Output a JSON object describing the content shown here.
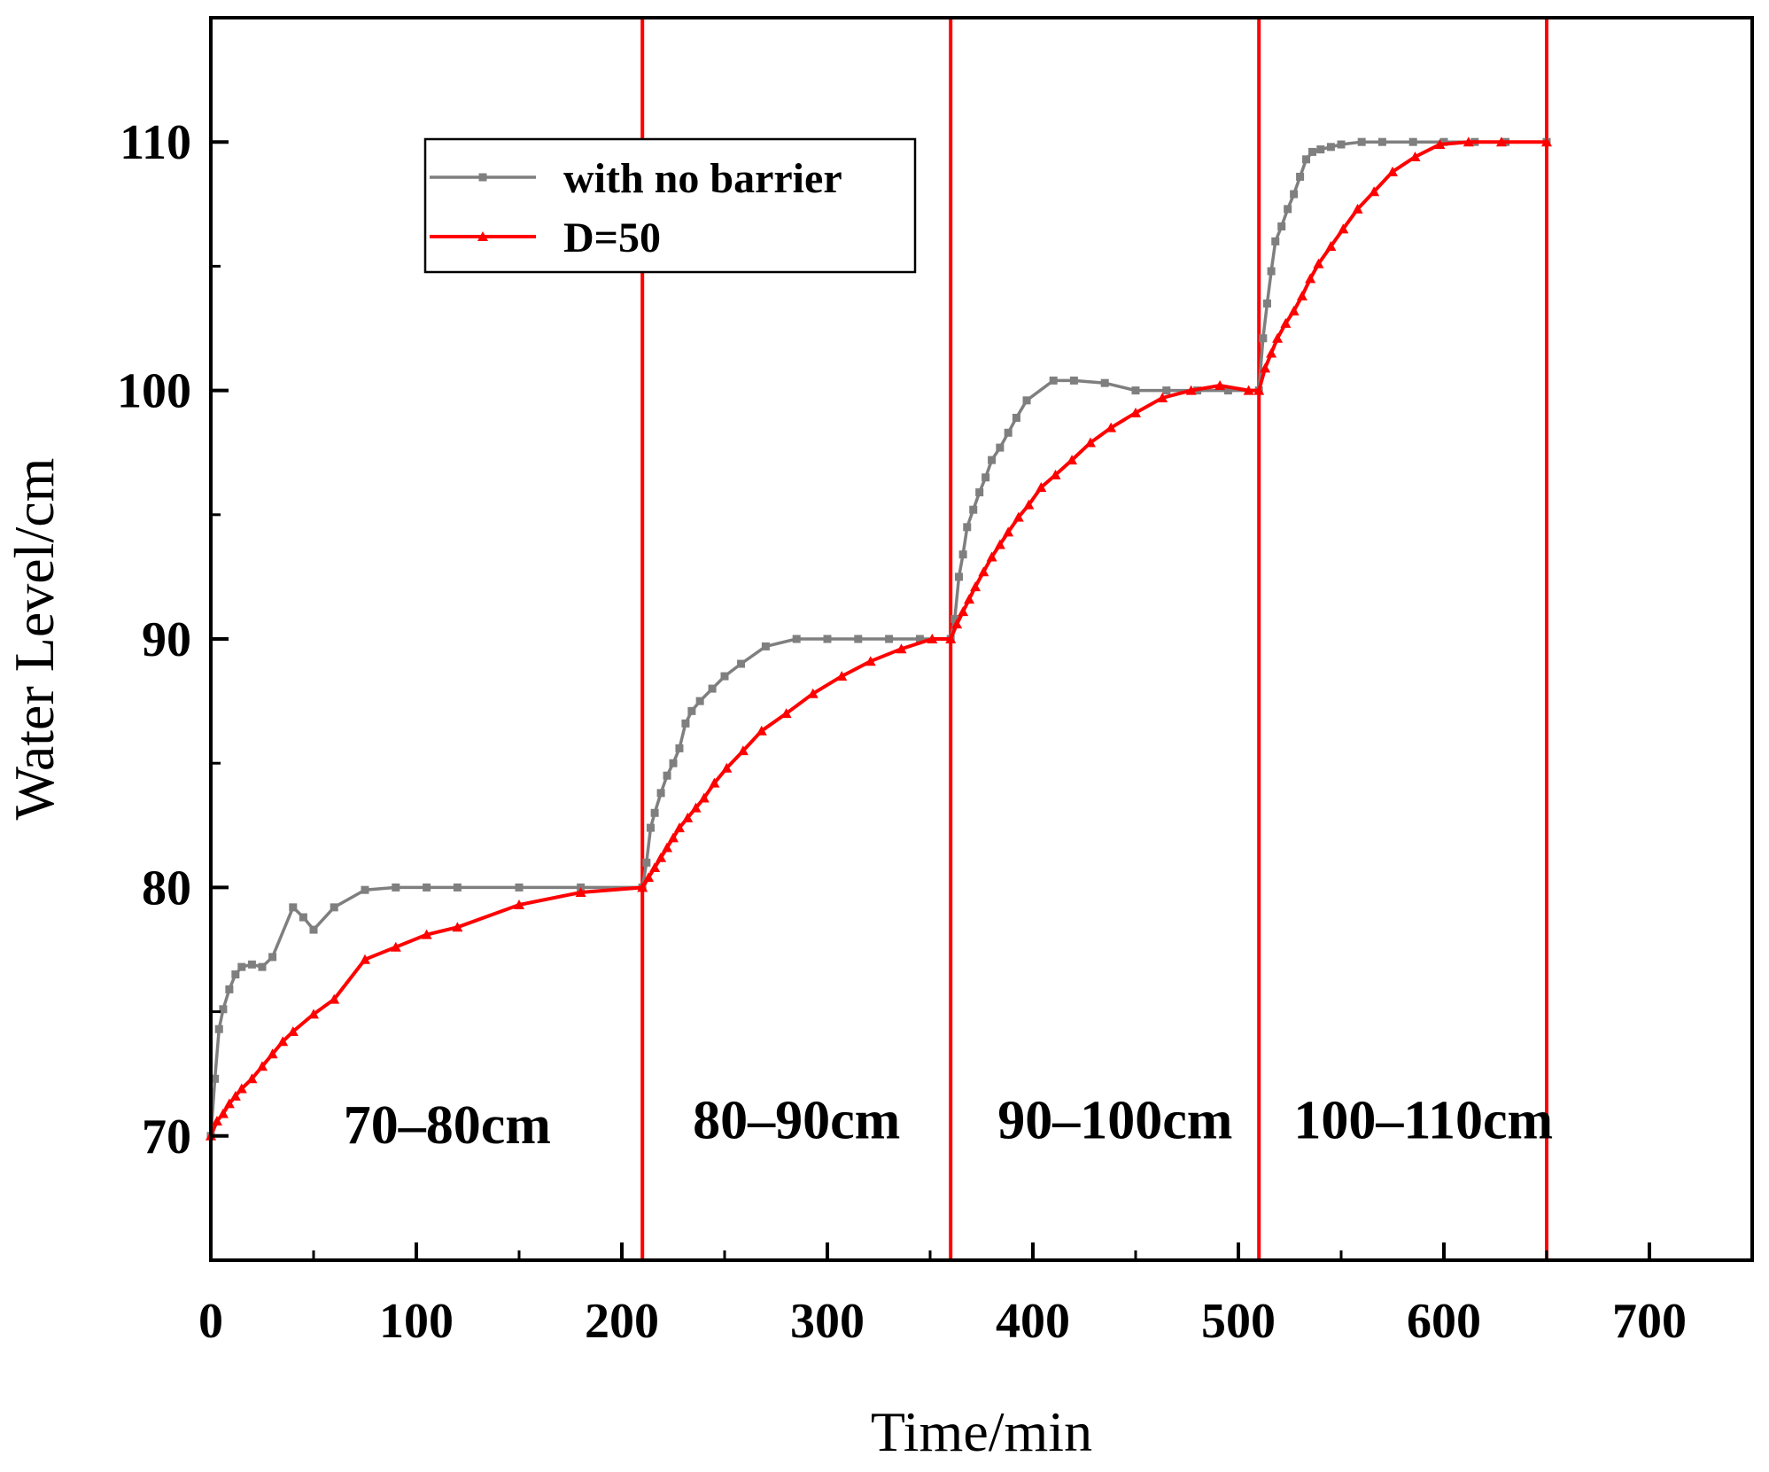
{
  "chart_data": {
    "type": "line",
    "title": "",
    "xlabel": "Time/min",
    "ylabel": "Water Level/cm",
    "xlim": [
      0,
      750
    ],
    "ylim": [
      65,
      115
    ],
    "xticks": [
      0,
      100,
      200,
      300,
      400,
      500,
      600,
      700
    ],
    "yticks": [
      70,
      80,
      90,
      100,
      110
    ],
    "grid": false,
    "legend_position": "top-left",
    "colors": {
      "no_barrier": "#7f7f7f",
      "d50": "#ff0000",
      "divider": "#ff0000"
    },
    "series": [
      {
        "name": "with no barrier",
        "marker": "square",
        "x": [
          0,
          2,
          4,
          6,
          9,
          12,
          15,
          20,
          25,
          30,
          40,
          45,
          50,
          60,
          75,
          90,
          105,
          120,
          150,
          180,
          210,
          212,
          214,
          216,
          219,
          222,
          225,
          228,
          231,
          234,
          238,
          244,
          250,
          258,
          270,
          285,
          300,
          315,
          330,
          345,
          360,
          362,
          364,
          366,
          368,
          371,
          374,
          377,
          380,
          384,
          388,
          392,
          397,
          410,
          420,
          435,
          450,
          465,
          480,
          495,
          510,
          512,
          514,
          516,
          518,
          521,
          524,
          527,
          530,
          533,
          536,
          540,
          545,
          550,
          560,
          570,
          585,
          600,
          615,
          630,
          650
        ],
        "y": [
          70,
          72.3,
          74.3,
          75.1,
          75.9,
          76.5,
          76.8,
          76.9,
          76.8,
          77.2,
          79.2,
          78.8,
          78.3,
          79.2,
          79.9,
          80,
          80,
          80,
          80,
          80,
          80,
          81,
          82.4,
          83,
          83.8,
          84.5,
          85,
          85.6,
          86.6,
          87.1,
          87.5,
          88,
          88.5,
          89,
          89.7,
          90,
          90,
          90,
          90,
          90,
          90,
          90.8,
          92.5,
          93.4,
          94.5,
          95.2,
          95.9,
          96.5,
          97.2,
          97.7,
          98.3,
          98.9,
          99.6,
          100.4,
          100.4,
          100.3,
          100,
          100,
          100,
          100,
          100,
          102.1,
          103.5,
          104.8,
          106,
          106.6,
          107.3,
          107.9,
          108.6,
          109.3,
          109.6,
          109.7,
          109.8,
          109.9,
          110,
          110,
          110,
          110,
          110,
          110,
          110
        ]
      },
      {
        "name": "D=50",
        "marker": "triangle",
        "x": [
          0,
          3,
          6,
          9,
          12,
          15,
          20,
          25,
          30,
          35,
          40,
          50,
          60,
          75,
          90,
          105,
          120,
          150,
          180,
          210,
          213,
          216,
          219,
          222,
          225,
          228,
          232,
          236,
          240,
          245,
          251,
          259,
          268,
          280,
          293,
          307,
          321,
          336,
          351,
          360,
          363,
          366,
          369,
          372,
          376,
          380,
          384,
          388,
          393,
          398,
          404,
          411,
          419,
          428,
          438,
          450,
          463,
          477,
          491,
          505,
          510,
          513,
          516,
          519,
          523,
          527,
          531,
          535,
          539,
          545,
          551,
          558,
          566,
          575,
          586,
          598,
          612,
          628,
          650
        ],
        "y": [
          70,
          70.6,
          70.9,
          71.3,
          71.6,
          71.9,
          72.3,
          72.8,
          73.3,
          73.8,
          74.2,
          74.9,
          75.5,
          77.1,
          77.6,
          78.1,
          78.4,
          79.3,
          79.8,
          80,
          80.4,
          80.8,
          81.2,
          81.6,
          82,
          82.4,
          82.8,
          83.2,
          83.6,
          84.2,
          84.8,
          85.5,
          86.3,
          87,
          87.8,
          88.5,
          89.1,
          89.6,
          90,
          90,
          90.6,
          91.1,
          91.6,
          92.1,
          92.7,
          93.3,
          93.8,
          94.3,
          94.9,
          95.4,
          96.1,
          96.6,
          97.2,
          97.9,
          98.5,
          99.1,
          99.7,
          100,
          100.2,
          100,
          100,
          100.9,
          101.5,
          102.1,
          102.7,
          103.2,
          103.8,
          104.5,
          105.1,
          105.8,
          106.5,
          107.3,
          108,
          108.8,
          109.4,
          109.9,
          110,
          110,
          110
        ]
      }
    ],
    "dividers": [
      210,
      360,
      510,
      650
    ],
    "region_labels": [
      {
        "text": "70–80cm",
        "x": 115,
        "y": 69.7
      },
      {
        "text": "80–90cm",
        "x": 285,
        "y": 69.9
      },
      {
        "text": "90–100cm",
        "x": 440,
        "y": 69.9
      },
      {
        "text": "100–110cm",
        "x": 590,
        "y": 69.9
      }
    ]
  }
}
